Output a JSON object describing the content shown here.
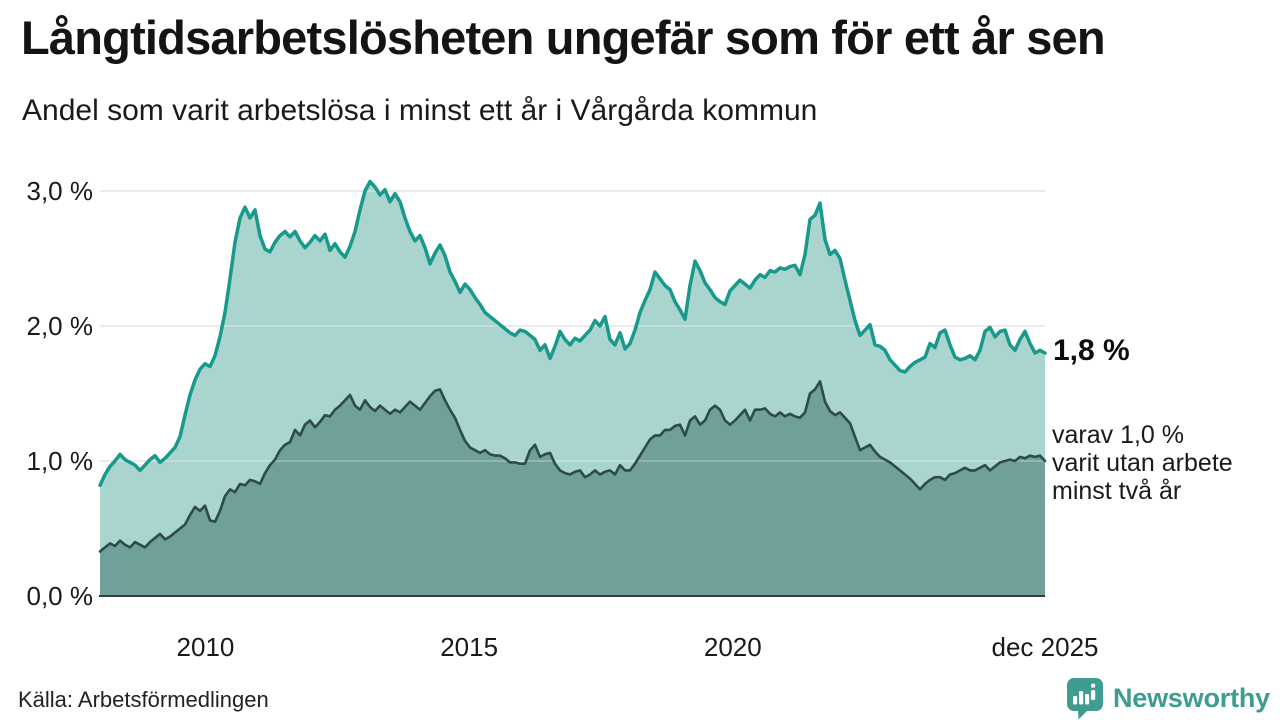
{
  "header": {
    "title": "Långtidsarbetslösheten ungefär som för ett år sen",
    "subtitle": "Andel som varit arbetslösa i minst ett år i Vårgårda kommun"
  },
  "annotations": {
    "latest_total": "1,8 %",
    "breakdown": [
      "varav 1,0 %",
      "varit utan arbete",
      "minst två år"
    ]
  },
  "footer": {
    "source": "Källa: Arbetsförmedlingen",
    "brand": "Newsworthy"
  },
  "chart_data": {
    "type": "area",
    "title": "Långtidsarbetslösheten ungefär som för ett år sen",
    "subtitle": "Andel som varit arbetslösa i minst ett år i Vårgårda kommun",
    "unit": "%",
    "x_axis": {
      "range": [
        2008.0,
        2025.92
      ],
      "ticks": [
        {
          "label": "2010",
          "year": 2010
        },
        {
          "label": "2015",
          "year": 2015
        },
        {
          "label": "2020",
          "year": 2020
        },
        {
          "label": "dec 2025",
          "year": 2025.92
        }
      ]
    },
    "y_axis": {
      "ylim": [
        0,
        3.2
      ],
      "gridlines": [
        1.0,
        2.0,
        3.0
      ],
      "ticks": [
        {
          "label": "0,0 %",
          "value": 0
        },
        {
          "label": "1,0 %",
          "value": 1
        },
        {
          "label": "2,0 %",
          "value": 2
        },
        {
          "label": "3,0 %",
          "value": 3
        }
      ]
    },
    "colors": {
      "line_total": "#18998c",
      "area_total": "#aad5ce",
      "line_two_year": "#2e4b47",
      "area_two_year": "#6fa09a",
      "grid": "#d9d9d9",
      "grid_overlay": "rgba(255,255,255,0.33)",
      "baseline": "#3c3c3c",
      "brand_teal": "#3e9c90"
    },
    "series": [
      {
        "name": "Andel arbetslösa minst ett år",
        "end_value": 1.8,
        "end_label": "1,8 %",
        "values": [
          0.82,
          0.9,
          0.96,
          1.0,
          1.05,
          1.01,
          0.99,
          0.97,
          0.93,
          0.97,
          1.01,
          1.04,
          0.99,
          1.02,
          1.06,
          1.1,
          1.18,
          1.34,
          1.49,
          1.6,
          1.68,
          1.72,
          1.7,
          1.78,
          1.92,
          2.1,
          2.35,
          2.62,
          2.8,
          2.88,
          2.8,
          2.86,
          2.67,
          2.57,
          2.55,
          2.62,
          2.67,
          2.7,
          2.66,
          2.7,
          2.63,
          2.58,
          2.62,
          2.67,
          2.63,
          2.68,
          2.56,
          2.61,
          2.55,
          2.51,
          2.59,
          2.7,
          2.86,
          3.0,
          3.07,
          3.03,
          2.97,
          3.01,
          2.92,
          2.98,
          2.92,
          2.8,
          2.7,
          2.63,
          2.67,
          2.58,
          2.46,
          2.54,
          2.6,
          2.52,
          2.4,
          2.33,
          2.25,
          2.31,
          2.27,
          2.21,
          2.16,
          2.1,
          2.07,
          2.04,
          2.01,
          1.98,
          1.95,
          1.93,
          1.97,
          1.96,
          1.93,
          1.9,
          1.82,
          1.86,
          1.76,
          1.85,
          1.96,
          1.9,
          1.86,
          1.91,
          1.89,
          1.93,
          1.97,
          2.04,
          2.0,
          2.07,
          1.9,
          1.86,
          1.95,
          1.83,
          1.87,
          1.97,
          2.1,
          2.19,
          2.27,
          2.4,
          2.35,
          2.3,
          2.27,
          2.18,
          2.12,
          2.05,
          2.3,
          2.48,
          2.41,
          2.32,
          2.27,
          2.21,
          2.18,
          2.16,
          2.26,
          2.3,
          2.34,
          2.31,
          2.28,
          2.34,
          2.38,
          2.36,
          2.41,
          2.4,
          2.43,
          2.42,
          2.44,
          2.45,
          2.38,
          2.53,
          2.79,
          2.82,
          2.91,
          2.64,
          2.53,
          2.56,
          2.5,
          2.34,
          2.19,
          2.04,
          1.93,
          1.97,
          2.01,
          1.86,
          1.85,
          1.82,
          1.75,
          1.71,
          1.67,
          1.66,
          1.7,
          1.73,
          1.75,
          1.77,
          1.87,
          1.84,
          1.95,
          1.97,
          1.86,
          1.77,
          1.75,
          1.76,
          1.78,
          1.75,
          1.82,
          1.96,
          1.99,
          1.92,
          1.96,
          1.97,
          1.86,
          1.82,
          1.9,
          1.96,
          1.87,
          1.8,
          1.82,
          1.8
        ]
      },
      {
        "name": "varav utan arbete minst två år",
        "end_value": 1.0,
        "end_label": "varav 1,0 % varit utan arbete minst två år",
        "values": [
          0.33,
          0.36,
          0.39,
          0.37,
          0.41,
          0.38,
          0.36,
          0.4,
          0.38,
          0.36,
          0.4,
          0.43,
          0.46,
          0.42,
          0.44,
          0.47,
          0.5,
          0.53,
          0.6,
          0.66,
          0.63,
          0.67,
          0.56,
          0.55,
          0.63,
          0.74,
          0.79,
          0.77,
          0.83,
          0.82,
          0.86,
          0.85,
          0.83,
          0.91,
          0.97,
          1.01,
          1.08,
          1.12,
          1.14,
          1.23,
          1.19,
          1.27,
          1.3,
          1.25,
          1.29,
          1.34,
          1.33,
          1.38,
          1.41,
          1.45,
          1.49,
          1.41,
          1.38,
          1.45,
          1.4,
          1.37,
          1.41,
          1.38,
          1.35,
          1.38,
          1.36,
          1.4,
          1.44,
          1.41,
          1.38,
          1.43,
          1.48,
          1.52,
          1.53,
          1.45,
          1.38,
          1.32,
          1.23,
          1.15,
          1.1,
          1.08,
          1.06,
          1.08,
          1.05,
          1.04,
          1.04,
          1.02,
          0.99,
          0.99,
          0.98,
          0.98,
          1.08,
          1.12,
          1.03,
          1.05,
          1.06,
          0.98,
          0.93,
          0.91,
          0.9,
          0.92,
          0.93,
          0.88,
          0.9,
          0.93,
          0.9,
          0.92,
          0.93,
          0.9,
          0.97,
          0.93,
          0.93,
          0.98,
          1.04,
          1.1,
          1.16,
          1.19,
          1.19,
          1.23,
          1.23,
          1.26,
          1.27,
          1.19,
          1.3,
          1.33,
          1.27,
          1.3,
          1.38,
          1.41,
          1.38,
          1.3,
          1.27,
          1.3,
          1.34,
          1.38,
          1.3,
          1.38,
          1.38,
          1.39,
          1.35,
          1.33,
          1.36,
          1.33,
          1.35,
          1.33,
          1.32,
          1.36,
          1.5,
          1.53,
          1.59,
          1.44,
          1.37,
          1.34,
          1.36,
          1.32,
          1.28,
          1.18,
          1.08,
          1.1,
          1.12,
          1.07,
          1.03,
          1.01,
          0.99,
          0.96,
          0.93,
          0.9,
          0.87,
          0.83,
          0.79,
          0.83,
          0.86,
          0.88,
          0.88,
          0.86,
          0.9,
          0.91,
          0.93,
          0.95,
          0.93,
          0.93,
          0.95,
          0.97,
          0.93,
          0.96,
          0.99,
          1.0,
          1.01,
          1.0,
          1.03,
          1.02,
          1.04,
          1.03,
          1.04,
          1.0
        ]
      }
    ]
  }
}
